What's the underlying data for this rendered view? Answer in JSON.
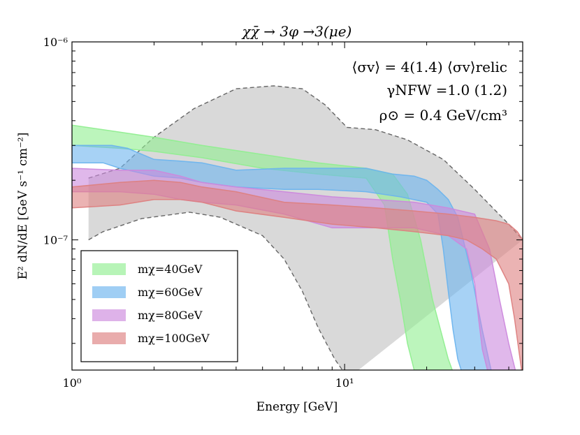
{
  "chart_data": {
    "type": "area",
    "title": "χχ̄ → 3φ →3(μe)",
    "xlabel": "Energy [GeV]",
    "ylabel": "E² dN/dE [GeV s⁻¹ cm⁻²]",
    "xscale": "log",
    "yscale": "log",
    "xlim": [
      1,
      45
    ],
    "ylim": [
      2.2e-08,
      1e-06
    ],
    "x_ticks": [
      {
        "value": 1,
        "label": "10⁰"
      },
      {
        "value": 10,
        "label": "10¹"
      }
    ],
    "y_ticks": [
      {
        "value": 1e-07,
        "label": "10⁻⁷"
      },
      {
        "value": 1e-06,
        "label": "10⁻⁶"
      }
    ],
    "grid": false,
    "legend_position": "lower-left",
    "annotations": [
      "⟨σv⟩ = 4(1.4) ⟨σv⟩relic",
      "γNFW =1.0 (1.2)",
      "ρ⊙ = 0.4 GeV/cm³"
    ],
    "observed_band": {
      "color": "#d9d9d9",
      "edge_color": "#666666",
      "upper": {
        "x": [
          1.15,
          1.5,
          2.0,
          2.8,
          4.0,
          5.5,
          7.0,
          8.5,
          10.2,
          13.0,
          17.0,
          23.0,
          30.0,
          40.0,
          45.0
        ],
        "y": [
          2.05e-07,
          2.3e-07,
          3.3e-07,
          4.6e-07,
          5.8e-07,
          6e-07,
          5.8e-07,
          4.8e-07,
          3.7e-07,
          3.6e-07,
          3.2e-07,
          2.55e-07,
          1.8e-07,
          1.2e-07,
          1e-07
        ]
      },
      "lower": {
        "x": [
          1.15,
          1.3,
          1.8,
          2.7,
          3.5,
          5.0,
          6.0,
          7.0,
          8.0,
          9.2,
          10.3
        ],
        "y": [
          1e-07,
          1.1e-07,
          1.28e-07,
          1.38e-07,
          1.3e-07,
          1.05e-07,
          8e-08,
          5.5e-08,
          3.6e-08,
          2.5e-08,
          2e-08
        ]
      }
    },
    "series": [
      {
        "name": "mχ=40GeV",
        "color": "#90ee90",
        "upper": {
          "x": [
            1,
            1.5,
            2,
            3,
            5,
            8,
            12,
            15,
            17,
            19,
            21,
            24,
            27
          ],
          "y": [
            3.8e-07,
            3.5e-07,
            3.3e-07,
            3e-07,
            2.7e-07,
            2.45e-07,
            2.3e-07,
            2.15e-07,
            1.7e-07,
            1e-07,
            5e-08,
            2.5e-08,
            1.6e-08
          ]
        },
        "lower": {
          "x": [
            1,
            1.5,
            2,
            3,
            5,
            8,
            12,
            14,
            15,
            16,
            17,
            18
          ],
          "y": [
            3e-07,
            2.9e-07,
            2.8e-07,
            2.6e-07,
            2.3e-07,
            2.15e-07,
            2.05e-07,
            1.5e-07,
            8e-08,
            5e-08,
            3e-08,
            2.2e-08
          ]
        }
      },
      {
        "name": "mχ=60GeV",
        "color": "#6cb4ee",
        "upper": {
          "x": [
            1,
            1.4,
            1.6,
            2,
            2.5,
            3,
            4,
            6,
            8,
            12,
            15,
            18,
            20,
            22,
            24,
            26,
            29,
            32,
            35
          ],
          "y": [
            3e-07,
            3e-07,
            2.9e-07,
            2.55e-07,
            2.5e-07,
            2.45e-07,
            2.25e-07,
            2.3e-07,
            2.3e-07,
            2.3e-07,
            2.15e-07,
            2.1e-07,
            2e-07,
            1.8e-07,
            1.6e-07,
            1.3e-07,
            7e-08,
            3.5e-08,
            2e-08
          ]
        },
        "lower": {
          "x": [
            1,
            1.3,
            1.5,
            2,
            2.5,
            3,
            4,
            6,
            8,
            12,
            16,
            20,
            22,
            23,
            24,
            25,
            26,
            28
          ],
          "y": [
            2.45e-07,
            2.45e-07,
            2.3e-07,
            2.1e-07,
            2.05e-07,
            1.95e-07,
            1.85e-07,
            1.8e-07,
            1.8e-07,
            1.75e-07,
            1.65e-07,
            1.55e-07,
            1.35e-07,
            9e-08,
            5.5e-08,
            3.5e-08,
            2.5e-08,
            1.8e-08
          ]
        }
      },
      {
        "name": "mχ=80GeV",
        "color": "#cc88dd",
        "upper": {
          "x": [
            1,
            1.5,
            2,
            2.5,
            3,
            4,
            6,
            9,
            13,
            18,
            24,
            30,
            34,
            37,
            40,
            43
          ],
          "y": [
            2.3e-07,
            2.25e-07,
            2.25e-07,
            2.1e-07,
            1.95e-07,
            1.85e-07,
            1.75e-07,
            1.65e-07,
            1.6e-07,
            1.55e-07,
            1.45e-07,
            1.35e-07,
            9e-08,
            5e-08,
            3e-08,
            2e-08
          ]
        },
        "lower": {
          "x": [
            1,
            1.5,
            2,
            2.5,
            3,
            4,
            6,
            9,
            13,
            18,
            24,
            28,
            30,
            31,
            32,
            34
          ],
          "y": [
            1.75e-07,
            1.75e-07,
            1.7e-07,
            1.6e-07,
            1.55e-07,
            1.5e-07,
            1.35e-07,
            1.15e-07,
            1.15e-07,
            1.15e-07,
            1.05e-07,
            9e-08,
            6e-08,
            4e-08,
            2.8e-08,
            2e-08
          ]
        }
      },
      {
        "name": "mχ=100GeV",
        "color": "#dd8080",
        "upper": {
          "x": [
            1,
            1.5,
            2,
            2.5,
            3,
            4,
            6,
            9,
            13,
            18,
            24,
            30,
            36,
            40,
            43,
            45
          ],
          "y": [
            1.85e-07,
            1.95e-07,
            2e-07,
            1.95e-07,
            1.85e-07,
            1.75e-07,
            1.55e-07,
            1.5e-07,
            1.45e-07,
            1.4e-07,
            1.35e-07,
            1.3e-07,
            1.25e-07,
            1.2e-07,
            1.1e-07,
            1e-07
          ]
        },
        "lower": {
          "x": [
            1,
            1.5,
            2,
            2.5,
            3,
            4,
            6,
            9,
            13,
            18,
            24,
            28,
            32,
            36,
            40,
            42,
            44,
            45
          ],
          "y": [
            1.45e-07,
            1.5e-07,
            1.6e-07,
            1.6e-07,
            1.55e-07,
            1.4e-07,
            1.3e-07,
            1.2e-07,
            1.15e-07,
            1.1e-07,
            1.05e-07,
            1e-07,
            9e-08,
            8e-08,
            6e-08,
            4e-08,
            2.5e-08,
            2e-08
          ]
        }
      }
    ]
  }
}
